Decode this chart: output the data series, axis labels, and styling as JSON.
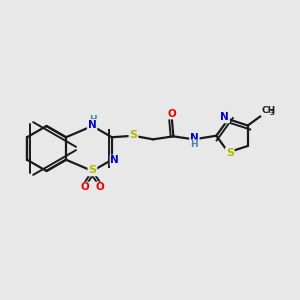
{
  "background_color": "#e8e8e8",
  "bond_color": "#1a1a1a",
  "atom_colors": {
    "S": "#b8b800",
    "N": "#0000cc",
    "O": "#ee0000",
    "C": "#1a1a1a",
    "NH": "#4488aa",
    "H": "#4488aa"
  },
  "figsize": [
    3.0,
    3.0
  ],
  "dpi": 100
}
